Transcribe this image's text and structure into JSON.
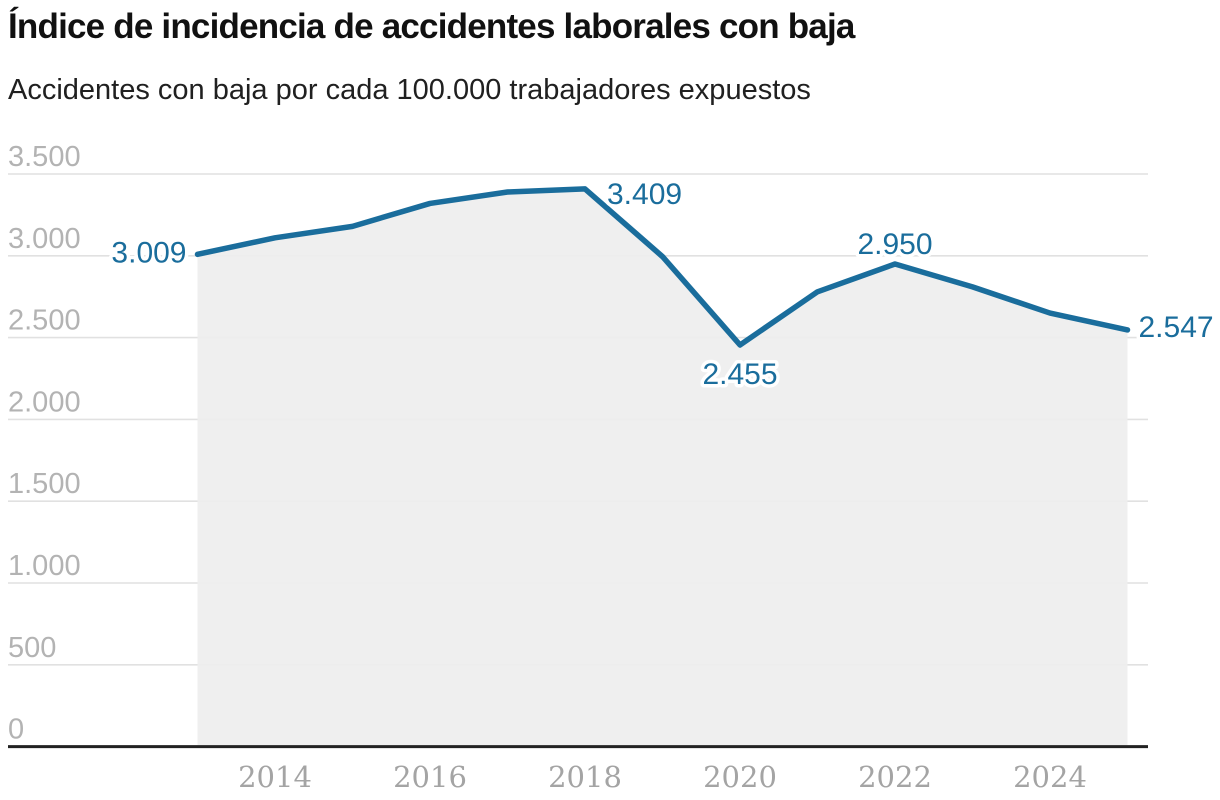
{
  "header": {
    "title": "Índice de incidencia de accidentes laborales con baja",
    "subtitle": "Accidentes con baja por cada 100.000 trabajadores expuestos"
  },
  "colors": {
    "line": "#1a6d9c",
    "point_label": "#1a6d9c",
    "area_fill": "#eeeeee",
    "gridline": "#e1e1e1",
    "baseline_axis": "#222222",
    "y_tick_label": "#b3b3b3",
    "x_tick_label": "#a4a4a4",
    "title_text": "#111111",
    "subtitle_text": "#202020",
    "label_halo": "#ffffff"
  },
  "chart_data": {
    "type": "area",
    "title": "Índice de incidencia de accidentes laborales con baja",
    "subtitle": "Accidentes con baja por cada 100.000 trabajadores expuestos",
    "x": [
      2013,
      2014,
      2015,
      2016,
      2017,
      2018,
      2019,
      2020,
      2021,
      2022,
      2023,
      2024,
      2025
    ],
    "series": [
      {
        "name": "Índice de incidencia",
        "values": [
          3009,
          3110,
          3180,
          3320,
          3390,
          3409,
          2995,
          2455,
          2780,
          2950,
          2810,
          2650,
          2547
        ]
      }
    ],
    "ylim": [
      0,
      3500
    ],
    "yticks": [
      0,
      500,
      1000,
      1500,
      2000,
      2500,
      3000,
      3500
    ],
    "ytick_labels": [
      "0",
      "500",
      "1.000",
      "1.500",
      "2.000",
      "2.500",
      "3.000",
      "3.500"
    ],
    "xticks": [
      2014,
      2016,
      2018,
      2020,
      2022,
      2024
    ],
    "xtick_labels": [
      "2014",
      "2016",
      "2018",
      "2020",
      "2022",
      "2024"
    ],
    "grid": true,
    "legend": false,
    "point_labels": [
      {
        "year": 2013,
        "text": "3.009",
        "position": "left"
      },
      {
        "year": 2018,
        "text": "3.409",
        "position": "above-right"
      },
      {
        "year": 2020,
        "text": "2.455",
        "position": "below"
      },
      {
        "year": 2022,
        "text": "2.950",
        "position": "above"
      },
      {
        "year": 2025,
        "text": "2.547",
        "position": "right"
      }
    ]
  }
}
